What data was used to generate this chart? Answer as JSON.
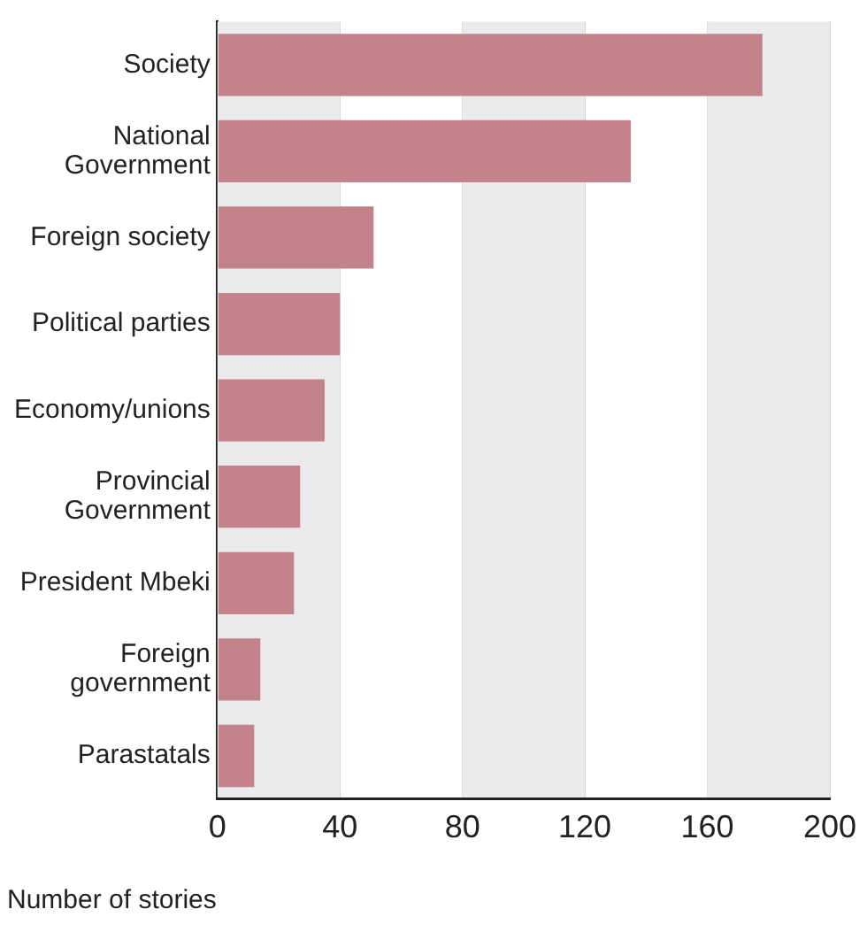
{
  "chart_data": {
    "type": "bar",
    "orientation": "horizontal",
    "xlabel": "Number of stories",
    "categories": [
      "Society",
      "National Government",
      "Foreign society",
      "Political parties",
      "Economy/unions",
      "Provincial Government",
      "President Mbeki",
      "Foreign government",
      "Parastatals"
    ],
    "values": [
      178,
      135,
      51,
      40,
      35,
      27,
      25,
      14,
      12
    ],
    "color": "#c4838a",
    "xlim": [
      0,
      200
    ],
    "xticks": [
      0,
      40,
      80,
      120,
      160,
      200
    ],
    "grid": "x"
  }
}
